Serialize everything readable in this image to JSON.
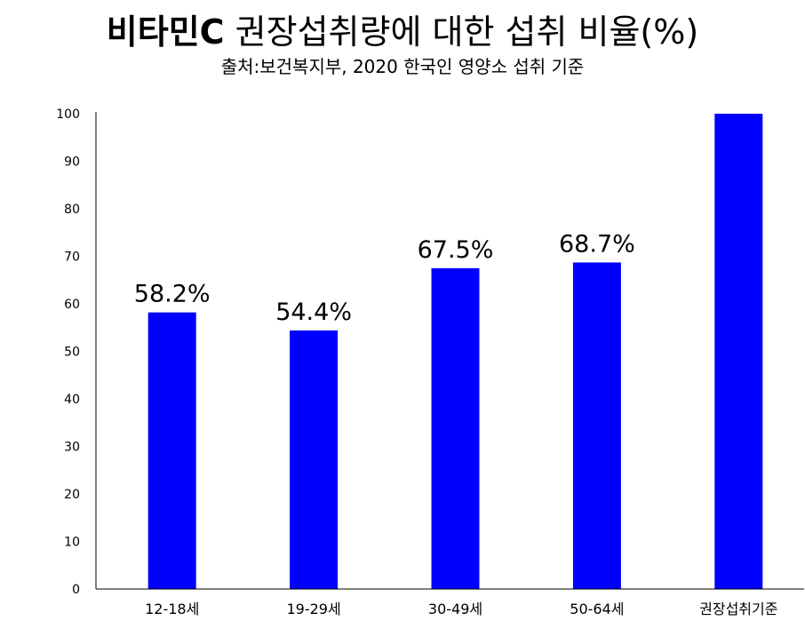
{
  "chart_data": {
    "type": "bar",
    "title_bold": "비타민C",
    "title_rest": " 권장섭취량에 대한 섭취 비율(%)",
    "subtitle": "출처:보건복지부, 2020 한국인 영양소 섭취 기준",
    "categories": [
      "12-18세",
      "19-29세",
      "30-49세",
      "50-64세",
      "권장섭취기준"
    ],
    "values": [
      58.2,
      54.4,
      67.5,
      68.7,
      100
    ],
    "data_labels": [
      "58.2%",
      "54.4%",
      "67.5%",
      "68.7%",
      ""
    ],
    "yticks": [
      "0",
      "10",
      "20",
      "30",
      "40",
      "50",
      "60",
      "70",
      "80",
      "90",
      "100"
    ],
    "ylim": [
      0,
      100
    ],
    "bar_color": "#0000ff",
    "grid": false,
    "legend": false
  }
}
